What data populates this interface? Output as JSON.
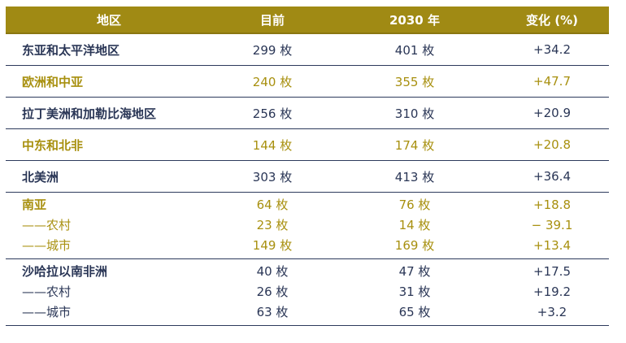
{
  "header": {
    "region": "地区",
    "current": "目前",
    "year2030": "2030 年",
    "change": "变化 (%)"
  },
  "rows": [
    {
      "region": "东亚和太平洋地区",
      "current": "299 枚",
      "year2030": "401 枚",
      "change": "+34.2"
    },
    {
      "region": "欧洲和中亚",
      "current": "240 枚",
      "year2030": "355 枚",
      "change": "+47.7"
    },
    {
      "region": "拉丁美洲和加勒比海地区",
      "current": "256 枚",
      "year2030": "310 枚",
      "change": "+20.9"
    },
    {
      "region": "中东和北非",
      "current": "144 枚",
      "year2030": "174 枚",
      "change": "+20.8"
    },
    {
      "region": "北美洲",
      "current": "303 枚",
      "year2030": "413 枚",
      "change": "+36.4"
    }
  ],
  "south_asia": [
    {
      "region": "南亚",
      "current": "64 枚",
      "year2030": "76 枚",
      "change": "+18.8"
    },
    {
      "region": "——农村",
      "current": "23 枚",
      "year2030": "14 枚",
      "change": "− 39.1"
    },
    {
      "region": "——城市",
      "current": "149 枚",
      "year2030": "169 枚",
      "change": "+13.4"
    }
  ],
  "sub_saharan": [
    {
      "region": "沙哈拉以南非洲",
      "current": "40 枚",
      "year2030": "47 枚",
      "change": "+17.5"
    },
    {
      "region": "——农村",
      "current": "26 枚",
      "year2030": "31 枚",
      "change": "+19.2"
    },
    {
      "region": "——城市",
      "current": "63 枚",
      "year2030": "65 枚",
      "change": "+3.2"
    }
  ],
  "colors": {
    "header_bg": "#a08a14",
    "navy_text": "#2a3656",
    "gold_text": "#a8900f",
    "rule": "#2d3a5c"
  }
}
